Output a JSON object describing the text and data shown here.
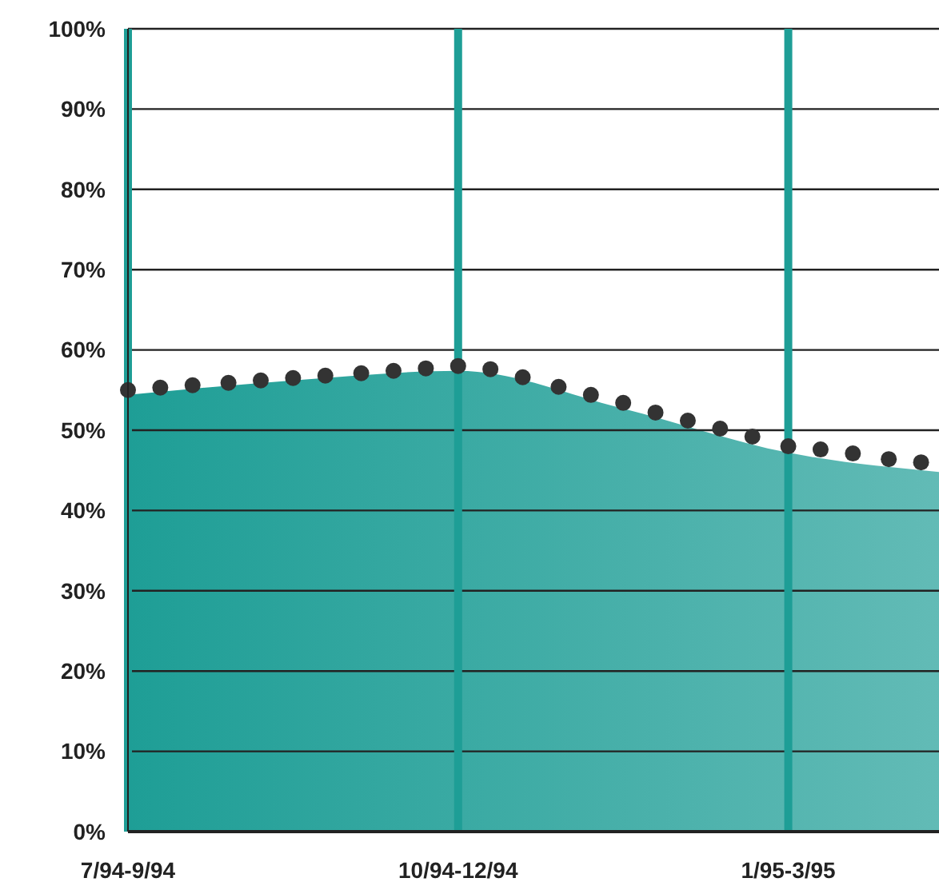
{
  "chart_data": {
    "type": "area",
    "x": [
      "1994-07-01",
      "1994-08-16",
      "1994-10-01",
      "1994-11-16",
      "1995-01-01",
      "1995-02-12"
    ],
    "xlim": [
      "1994-07-01",
      "1995-02-12"
    ],
    "xticks": [
      {
        "value": "1994-07-01",
        "label": "7/94-9/94"
      },
      {
        "value": "1994-10-01",
        "label": "10/94-12/94"
      },
      {
        "value": "1995-01-01",
        "label": "1/95-3/95"
      }
    ],
    "ylim": [
      0,
      100
    ],
    "yticks": [
      {
        "value": 0,
        "label": "0%"
      },
      {
        "value": 10,
        "label": "10%"
      },
      {
        "value": 20,
        "label": "20%"
      },
      {
        "value": 30,
        "label": "30%"
      },
      {
        "value": 40,
        "label": "40%"
      },
      {
        "value": 50,
        "label": "50%"
      },
      {
        "value": 60,
        "label": "60%"
      },
      {
        "value": 70,
        "label": "70%"
      },
      {
        "value": 80,
        "label": "80%"
      },
      {
        "value": 90,
        "label": "90%"
      },
      {
        "value": 100,
        "label": "100%"
      }
    ],
    "grid": true,
    "series": [
      {
        "color": "#1e9e96",
        "values": [
          54.4,
          56.2,
          57.4,
          52.7,
          47.2,
          44.8
        ]
      },
      {
        "type": "scatter",
        "color": "#333333",
        "marker": "circle",
        "x": [
          "1994-07-01",
          "1994-07-10",
          "1994-07-19",
          "1994-07-29",
          "1994-08-07",
          "1994-08-16",
          "1994-08-25",
          "1994-09-04",
          "1994-09-13",
          "1994-09-22",
          "1994-10-01",
          "1994-10-10",
          "1994-10-19",
          "1994-10-29",
          "1994-11-07",
          "1994-11-16",
          "1994-11-25",
          "1994-12-04",
          "1994-12-13",
          "1994-12-22",
          "1995-01-01",
          "1995-01-10",
          "1995-01-19",
          "1995-01-29",
          "1995-02-07"
        ],
        "values": [
          55.0,
          55.3,
          55.6,
          55.9,
          56.2,
          56.5,
          56.8,
          57.1,
          57.4,
          57.7,
          58.0,
          57.6,
          56.6,
          55.4,
          54.4,
          53.4,
          52.2,
          51.2,
          50.2,
          49.2,
          48.0,
          47.6,
          47.1,
          46.4,
          46.0
        ]
      }
    ]
  }
}
